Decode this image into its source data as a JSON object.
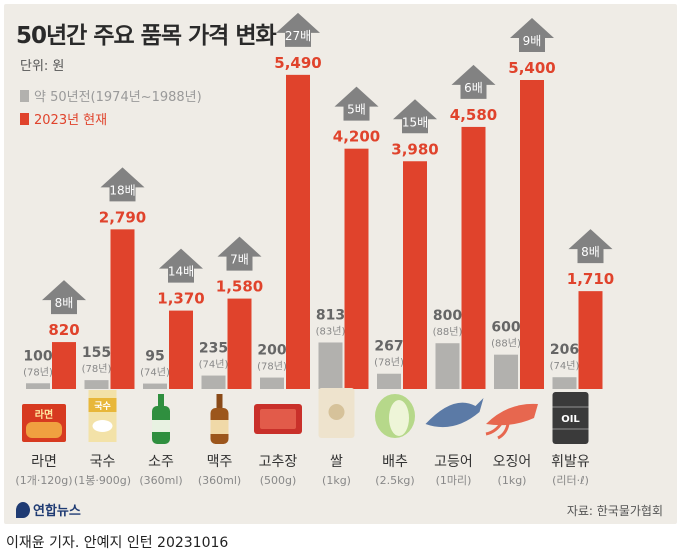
{
  "title": "50년간 주요 품목 가격 변화",
  "unit": "단위: 원",
  "legend": {
    "old_label": "약 50년전(1974년~1988년)",
    "new_label": "2023년 현재"
  },
  "colors": {
    "old": "#b2b1ae",
    "new": "#e0432c",
    "arrow": "#828282",
    "card": "#efece6"
  },
  "chart_data": {
    "type": "bar",
    "title": "50년간 주요 품목 가격 변화",
    "ylabel": "단위: 원",
    "ylim": [
      0,
      5600
    ],
    "categories": [
      "라면",
      "국수",
      "소주",
      "맥주",
      "고추장",
      "쌀",
      "배추",
      "고등어",
      "오징어",
      "휘발유"
    ],
    "units": [
      "(1개·120g)",
      "(1봉·900g)",
      "(360ml)",
      "(360ml)",
      "(500g)",
      "(1kg)",
      "(2.5kg)",
      "(1마리)",
      "(1kg)",
      "(리터·ℓ)"
    ],
    "series": [
      {
        "name": "약 50년전(1974년~1988년)",
        "values": [
          100,
          155,
          95,
          235,
          200,
          813,
          267,
          800,
          600,
          206
        ],
        "labels": [
          "100",
          "155",
          "95",
          "235",
          "200",
          "813",
          "267",
          "800",
          "600",
          "206"
        ],
        "years": [
          "(78년)",
          "(78년)",
          "(74년)",
          "(74년)",
          "(78년)",
          "(83년)",
          "(78년)",
          "(88년)",
          "(88년)",
          "(74년)"
        ]
      },
      {
        "name": "2023년 현재",
        "values": [
          820,
          2790,
          1370,
          1580,
          5490,
          4200,
          3980,
          4580,
          5400,
          1710
        ],
        "labels": [
          "820",
          "2,790",
          "1,370",
          "1,580",
          "5,490",
          "4,200",
          "3,980",
          "4,580",
          "5,400",
          "1,710"
        ]
      }
    ],
    "multipliers": [
      "8배",
      "18배",
      "14배",
      "7배",
      "27배",
      "5배",
      "15배",
      "6배",
      "9배",
      "8배"
    ]
  },
  "icons": [
    "ramen-icon",
    "noodles-icon",
    "soju-bottle-icon",
    "beer-bottle-icon",
    "gochujang-icon",
    "rice-bag-icon",
    "cabbage-icon",
    "mackerel-icon",
    "squid-icon",
    "oil-drum-icon"
  ],
  "icon_texts": {
    "ramen": "라면",
    "noodles": "국수",
    "oil": "OIL"
  },
  "footer": {
    "logo": "연합뉴스",
    "source": "자료: 한국물가협회",
    "credit": "이재윤 기자. 안예지 인턴  20231016"
  }
}
